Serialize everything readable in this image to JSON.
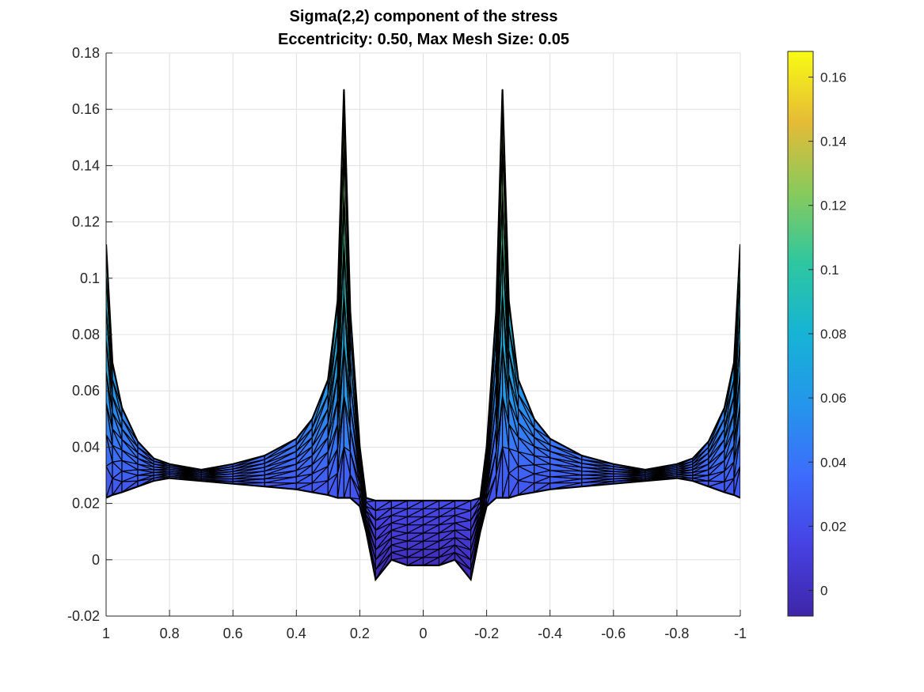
{
  "chart_data": {
    "type": "surface",
    "title": "Sigma(2,2) component of the stress",
    "subtitle": "Eccentricity: 0.50, Max Mesh Size: 0.05",
    "xlabel": "",
    "ylabel": "",
    "xlim": [
      1,
      -1
    ],
    "ylim": [
      -0.02,
      0.18
    ],
    "x_direction": "reversed",
    "xticks": [
      1,
      0.8,
      0.6,
      0.4,
      0.2,
      0,
      -0.2,
      -0.4,
      -0.6,
      -0.8,
      -1
    ],
    "xtick_labels": [
      "1",
      "0.8",
      "0.6",
      "0.4",
      "0.2",
      "0",
      "-0.2",
      "-0.4",
      "-0.6",
      "-0.8",
      "-1"
    ],
    "yticks": [
      -0.02,
      0,
      0.02,
      0.04,
      0.06,
      0.08,
      0.1,
      0.12,
      0.14,
      0.16,
      0.18
    ],
    "ytick_labels": [
      "-0.02",
      "0",
      "0.02",
      "0.04",
      "0.06",
      "0.08",
      "0.1",
      "0.12",
      "0.14",
      "0.16",
      "0.18"
    ],
    "grid": true,
    "colormap": "parula",
    "colorbar": {
      "placement": "right",
      "range": [
        -0.008,
        0.168
      ],
      "ticks": [
        0,
        0.02,
        0.04,
        0.06,
        0.08,
        0.1,
        0.12,
        0.14,
        0.16
      ],
      "tick_labels": [
        "0",
        "0.02",
        "0.04",
        "0.06",
        "0.08",
        "0.1",
        "0.12",
        "0.14",
        "0.16"
      ]
    },
    "profile": {
      "x": [
        1,
        0.98,
        0.95,
        0.9,
        0.85,
        0.8,
        0.7,
        0.6,
        0.5,
        0.4,
        0.35,
        0.3,
        0.27,
        0.25,
        0.23,
        0.2,
        0.18,
        0.15,
        0.1,
        0.05,
        0,
        -0.05,
        -0.1,
        -0.15,
        -0.18,
        -0.2,
        -0.23,
        -0.25,
        -0.27,
        -0.3,
        -0.35,
        -0.4,
        -0.5,
        -0.6,
        -0.7,
        -0.8,
        -0.85,
        -0.9,
        -0.95,
        -0.98,
        -1
      ],
      "top": [
        0.112,
        0.07,
        0.054,
        0.042,
        0.036,
        0.034,
        0.032,
        0.034,
        0.037,
        0.043,
        0.05,
        0.064,
        0.092,
        0.167,
        0.088,
        0.04,
        0.022,
        0.021,
        0.021,
        0.021,
        0.021,
        0.021,
        0.021,
        0.021,
        0.022,
        0.04,
        0.088,
        0.167,
        0.092,
        0.064,
        0.05,
        0.043,
        0.037,
        0.034,
        0.032,
        0.034,
        0.036,
        0.042,
        0.054,
        0.07,
        0.112
      ],
      "bottom": [
        0.022,
        0.023,
        0.024,
        0.026,
        0.028,
        0.029,
        0.028,
        0.027,
        0.026,
        0.025,
        0.024,
        0.023,
        0.022,
        0.022,
        0.022,
        0.019,
        0.01,
        -0.007,
        0.0,
        -0.002,
        -0.002,
        -0.002,
        0.0,
        -0.007,
        0.01,
        0.019,
        0.022,
        0.022,
        0.022,
        0.023,
        0.024,
        0.025,
        0.026,
        0.027,
        0.028,
        0.029,
        0.028,
        0.026,
        0.024,
        0.023,
        0.022
      ]
    },
    "colors": {
      "mesh_edges": "#000000",
      "grid": "#e0e0e0",
      "axis": "#262626"
    }
  }
}
